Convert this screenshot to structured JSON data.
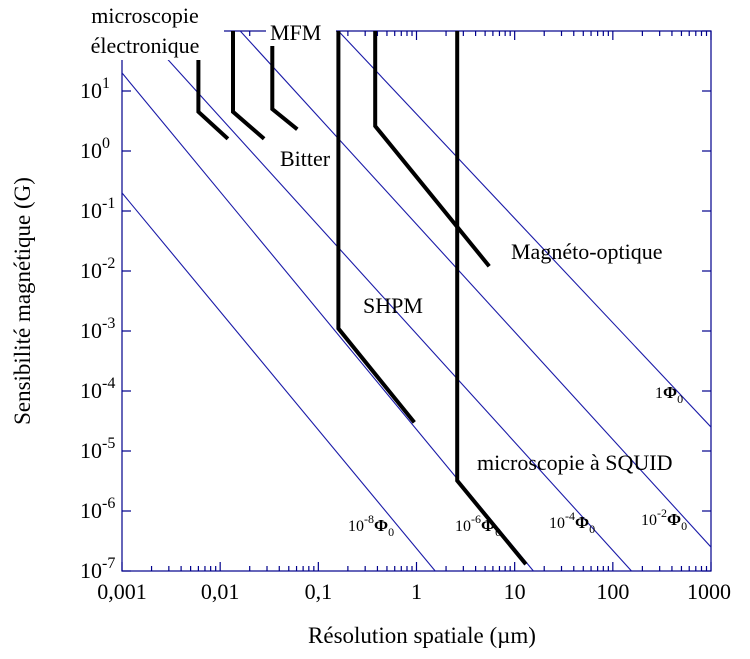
{
  "chart_data": {
    "type": "line",
    "xlabel": "Résolution spatiale (µm)",
    "ylabel": "Sensibilité magnétique (G)",
    "x_scale": "log",
    "y_scale": "log",
    "xlim": [
      0.001,
      1000
    ],
    "ylim": [
      1e-07,
      100
    ],
    "x_ticks": [
      "0,001",
      "0,01",
      "0,1",
      "1",
      "10",
      "100",
      "1000"
    ],
    "y_ticks": [
      {
        "base": "10",
        "exp": "-7"
      },
      {
        "base": "10",
        "exp": "-6"
      },
      {
        "base": "10",
        "exp": "-5"
      },
      {
        "base": "10",
        "exp": "-4"
      },
      {
        "base": "10",
        "exp": "-3"
      },
      {
        "base": "10",
        "exp": "-2"
      },
      {
        "base": "10",
        "exp": "-1"
      },
      {
        "base": "10",
        "exp": "0"
      },
      {
        "base": "10",
        "exp": "1"
      }
    ],
    "iso_flux_lines": [
      {
        "label_coef": "10",
        "label_exp": "-8",
        "label_sym": "Φ",
        "label_sub": "0",
        "points": [
          [
            0.001,
            0.2
          ],
          [
            1.55,
            1e-07
          ]
        ]
      },
      {
        "label_coef": "10",
        "label_exp": "-6",
        "label_sym": "Φ",
        "label_sub": "0",
        "points": [
          [
            0.001,
            20
          ],
          [
            15.5,
            1e-07
          ]
        ]
      },
      {
        "label_coef": "10",
        "label_exp": "-4",
        "label_sym": "Φ",
        "label_sub": "0",
        "points": [
          [
            0.0016,
            100
          ],
          [
            155,
            1e-07
          ]
        ]
      },
      {
        "label_coef": "10",
        "label_exp": "-2",
        "label_sym": "Φ",
        "label_sub": "0",
        "points": [
          [
            0.016,
            100
          ],
          [
            1000,
            2.5e-07
          ]
        ]
      },
      {
        "label_coef": "1",
        "label_exp": "",
        "label_sym": "Φ",
        "label_sub": "0",
        "points": [
          [
            0.16,
            100
          ],
          [
            1000,
            2.5e-05
          ]
        ]
      }
    ],
    "techniques": [
      {
        "label": "microscopie électronique",
        "label_lines": [
          "microscopie",
          "électronique"
        ],
        "points": [
          [
            0.006,
            100
          ],
          [
            0.006,
            4.5
          ],
          [
            0.012,
            1.6
          ]
        ]
      },
      {
        "label": "Bitter",
        "points": [
          [
            0.0135,
            100
          ],
          [
            0.0135,
            4.5
          ],
          [
            0.028,
            1.6
          ]
        ]
      },
      {
        "label": "MFM",
        "points": [
          [
            0.034,
            100
          ],
          [
            0.034,
            5
          ],
          [
            0.061,
            2.3
          ]
        ]
      },
      {
        "label": "SHPM",
        "points": [
          [
            0.16,
            100
          ],
          [
            0.16,
            0.0011
          ],
          [
            0.95,
            3e-05
          ]
        ]
      },
      {
        "label": "Magnéto-optique",
        "points": [
          [
            0.38,
            100
          ],
          [
            0.38,
            2.6
          ],
          [
            5.5,
            0.012
          ]
        ]
      },
      {
        "label": "microscopie à SQUID",
        "points": [
          [
            2.6,
            100
          ],
          [
            2.6,
            3.2e-06
          ],
          [
            13,
            1.3e-07
          ]
        ]
      }
    ]
  }
}
